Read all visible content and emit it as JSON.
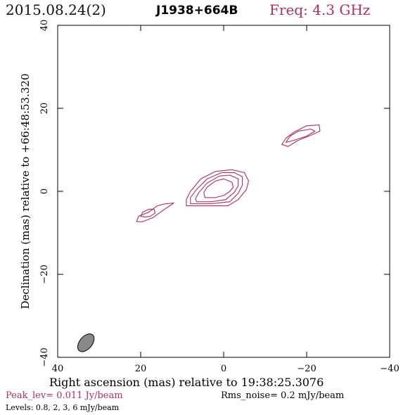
{
  "header": {
    "date": "2015.08.24(2)",
    "source": "J1938+664B",
    "freq": "Freq: 4.3 GHz"
  },
  "chart_data": {
    "type": "contour",
    "xlabel": "Right ascension (mas) relative to 19:38:25.3076",
    "ylabel": "Declination (mas) relative to +66:48:53.320",
    "xlim": [
      40,
      -40
    ],
    "ylim": [
      -40,
      40
    ],
    "x_ticks": [
      40,
      20,
      0,
      -20,
      -40
    ],
    "y_ticks": [
      -40,
      -20,
      0,
      20,
      40
    ],
    "x_tick_labels": [
      "40",
      "20",
      "0",
      "−20",
      "−40"
    ],
    "y_tick_labels": [
      "−40",
      "−20",
      "0",
      "20",
      "40"
    ],
    "contour_levels_mJy_per_beam": [
      0.8,
      2,
      3,
      6
    ],
    "contour_color": "#b0305a",
    "components": [
      {
        "id": "core",
        "contours": [
          [
            [
              9,
              -3.5
            ],
            [
              5,
              -3.5
            ],
            [
              -1,
              -3.5
            ],
            [
              -3.5,
              -2
            ],
            [
              -5.5,
              0.5
            ],
            [
              -6,
              2.5
            ],
            [
              -5,
              4.5
            ],
            [
              -2,
              5.2
            ],
            [
              2,
              4.8
            ],
            [
              5.5,
              3
            ],
            [
              8,
              0
            ],
            [
              9,
              -2
            ],
            [
              9,
              -3.5
            ]
          ],
          [
            [
              8,
              -3
            ],
            [
              3,
              -3
            ],
            [
              -1.5,
              -2.5
            ],
            [
              -3.5,
              -0.5
            ],
            [
              -4.5,
              1.5
            ],
            [
              -4.5,
              3.5
            ],
            [
              -2.5,
              4.5
            ],
            [
              0.5,
              4.5
            ],
            [
              4,
              3
            ],
            [
              6.5,
              0.5
            ],
            [
              8,
              -1.5
            ],
            [
              8,
              -3
            ]
          ],
          [
            [
              6.5,
              -2.5
            ],
            [
              3,
              -2.5
            ],
            [
              -0.5,
              -2
            ],
            [
              -2.5,
              -0.3
            ],
            [
              -3.5,
              1.3
            ],
            [
              -3.5,
              3
            ],
            [
              -1.5,
              3.9
            ],
            [
              1,
              3.7
            ],
            [
              4,
              2
            ],
            [
              6,
              -0.3
            ],
            [
              6.8,
              -1.8
            ],
            [
              6.5,
              -2.5
            ]
          ],
          [
            [
              4.5,
              -1.5
            ],
            [
              2,
              -1.5
            ],
            [
              0,
              -1
            ],
            [
              -1.5,
              0
            ],
            [
              -2.3,
              1
            ],
            [
              -2,
              2.2
            ],
            [
              0,
              3
            ],
            [
              2,
              2.5
            ],
            [
              4,
              1
            ],
            [
              4.8,
              -0.3
            ],
            [
              4.5,
              -1.5
            ]
          ]
        ]
      },
      {
        "id": "jet-west",
        "contours": [
          [
            [
              21,
              -7.3
            ],
            [
              20.5,
              -6
            ],
            [
              18,
              -5
            ],
            [
              16,
              -3.5
            ],
            [
              14,
              -3
            ],
            [
              12,
              -2.8
            ],
            [
              14.5,
              -4.5
            ],
            [
              17,
              -6.3
            ],
            [
              19.5,
              -7.3
            ],
            [
              21,
              -7.3
            ]
          ],
          [
            [
              20,
              -6
            ],
            [
              19.5,
              -5
            ],
            [
              18,
              -4.3
            ],
            [
              16.8,
              -4.3
            ],
            [
              16.5,
              -5.2
            ],
            [
              17.7,
              -6
            ],
            [
              19,
              -6.2
            ],
            [
              20,
              -6
            ]
          ]
        ]
      },
      {
        "id": "jet-east",
        "contours": [
          [
            [
              -14,
              11.3
            ],
            [
              -15,
              12.8
            ],
            [
              -17,
              14.3
            ],
            [
              -20,
              15.8
            ],
            [
              -23,
              16
            ],
            [
              -23.2,
              14.5
            ],
            [
              -21,
              13.5
            ],
            [
              -18,
              12.3
            ],
            [
              -15.5,
              10.8
            ],
            [
              -14,
              11.3
            ]
          ],
          [
            [
              -15,
              11.8
            ],
            [
              -16,
              13.3
            ],
            [
              -18,
              14.5
            ],
            [
              -21,
              15
            ],
            [
              -22,
              14.5
            ],
            [
              -20,
              13.3
            ],
            [
              -17,
              12.3
            ],
            [
              -15,
              11.8
            ]
          ]
        ]
      }
    ],
    "beam": {
      "center": [
        33.2,
        -36.5
      ],
      "major_mas": 5,
      "minor_mas": 3,
      "pa_deg": 50,
      "fill": "#888888"
    }
  },
  "footer": {
    "peak_lev": "Peak_lev=  0.011 Jy/beam",
    "rms_noise": "Rms_noise=   0.2 mJy/beam",
    "levels": "Levels: 0.8,    2,    3,    6 mJy/beam"
  }
}
